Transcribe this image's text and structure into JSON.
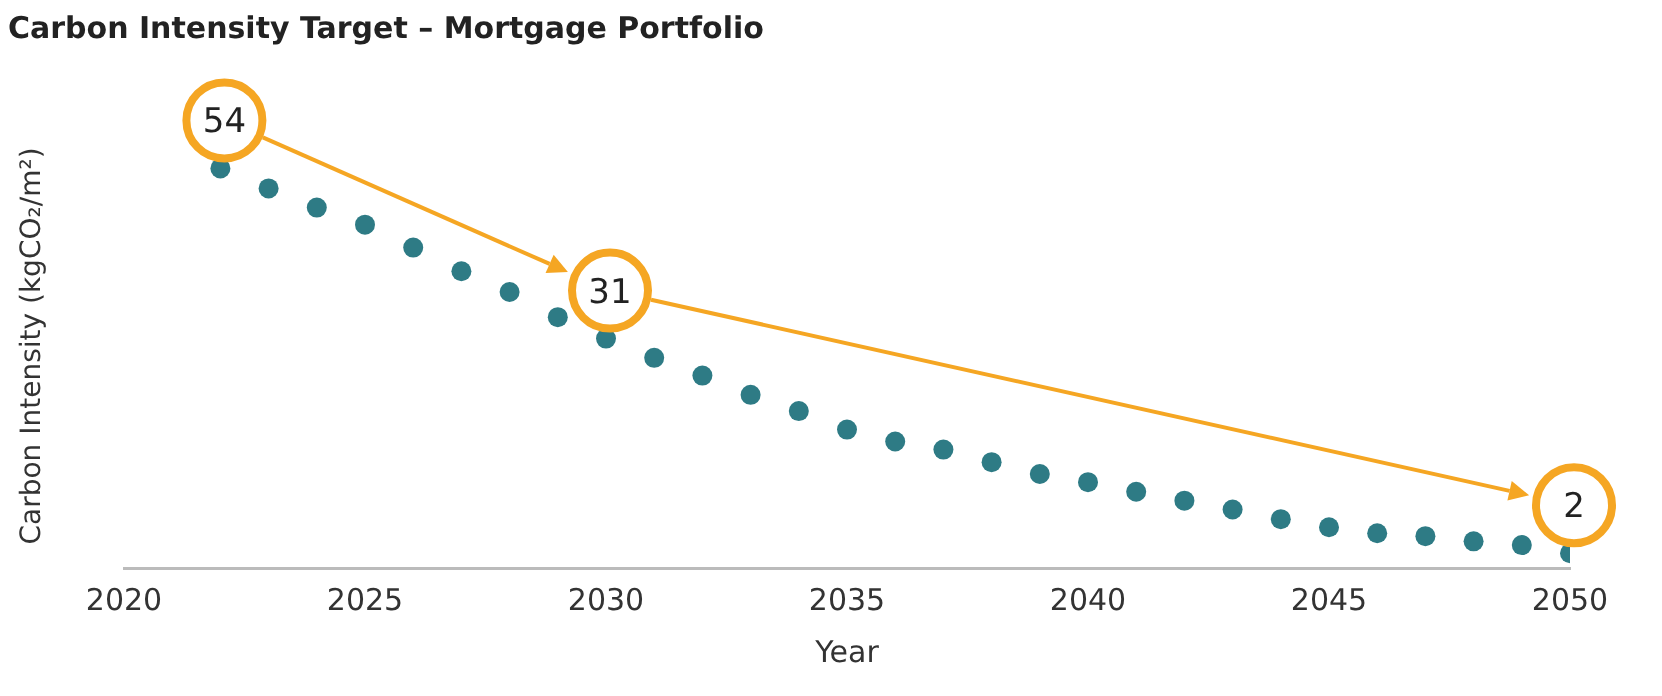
{
  "chart_data": {
    "type": "scatter",
    "title": "Carbon Intensity Target – Mortgage Portfolio",
    "xlabel": "Year",
    "ylabel": "Carbon Intensity (kgCO₂/m²)",
    "x": [
      2022,
      2023,
      2024,
      2025,
      2026,
      2027,
      2028,
      2029,
      2030,
      2031,
      2032,
      2033,
      2034,
      2035,
      2036,
      2037,
      2038,
      2039,
      2040,
      2041,
      2042,
      2043,
      2044,
      2045,
      2046,
      2047,
      2048,
      2049,
      2050
    ],
    "series": [
      {
        "color": "#2e7b85",
        "values": [
          54,
          51.3,
          48.7,
          46.4,
          43.3,
          40.1,
          37.3,
          33.9,
          31,
          28.4,
          26,
          23.4,
          21.2,
          18.7,
          17.1,
          16,
          14.3,
          12.7,
          11.6,
          10.3,
          9.1,
          7.9,
          6.6,
          5.5,
          4.7,
          4.3,
          3.6,
          3.1,
          2
        ],
        "value_labels": [
          "54",
          null,
          null,
          null,
          null,
          null,
          null,
          null,
          "31",
          null,
          null,
          null,
          null,
          null,
          null,
          null,
          null,
          null,
          null,
          null,
          null,
          null,
          null,
          null,
          null,
          null,
          null,
          null,
          "2"
        ]
      }
    ],
    "xlim": [
      2020,
      2050
    ],
    "xticks": [
      2020,
      2025,
      2030,
      2035,
      2040,
      2045,
      2050
    ],
    "tick_labels": "x",
    "grid": false,
    "legend": false,
    "marker": "circle"
  }
}
